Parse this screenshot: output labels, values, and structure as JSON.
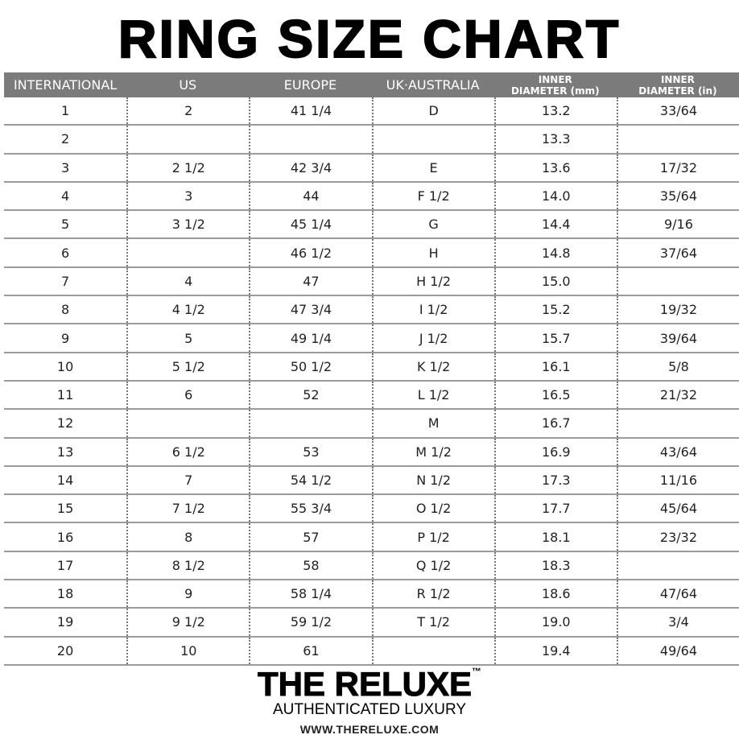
{
  "title": "RING SIZE CHART",
  "headers": [
    "INTERNATIONAL",
    "US",
    "EUROPE",
    "UK·AUSTRALIA",
    [
      "INNER",
      "DIAMETER (mm)"
    ],
    [
      "INNER",
      "DIAMETER (in)"
    ]
  ],
  "rows": [
    [
      "1",
      "2",
      "41 1/4",
      "D",
      "13.2",
      "33/64"
    ],
    [
      "2",
      "",
      "",
      "",
      "13.3",
      ""
    ],
    [
      "3",
      "2 1/2",
      "42 3/4",
      "E",
      "13.6",
      "17/32"
    ],
    [
      "4",
      "3",
      "44",
      "F 1/2",
      "14.0",
      "35/64"
    ],
    [
      "5",
      "3 1/2",
      "45 1/4",
      "G",
      "14.4",
      "9/16"
    ],
    [
      "6",
      "",
      "46 1/2",
      "H",
      "14.8",
      "37/64"
    ],
    [
      "7",
      "4",
      "47",
      "H 1/2",
      "15.0",
      ""
    ],
    [
      "8",
      "4 1/2",
      "47 3/4",
      "I 1/2",
      "15.2",
      "19/32"
    ],
    [
      "9",
      "5",
      "49 1/4",
      "J 1/2",
      "15.7",
      "39/64"
    ],
    [
      "10",
      "5 1/2",
      "50 1/2",
      "K 1/2",
      "16.1",
      "5/8"
    ],
    [
      "11",
      "6",
      "52",
      "L 1/2",
      "16.5",
      "21/32"
    ],
    [
      "12",
      "",
      "",
      "M",
      "16.7",
      ""
    ],
    [
      "13",
      "6 1/2",
      "53",
      "M 1/2",
      "16.9",
      "43/64"
    ],
    [
      "14",
      "7",
      "54 1/2",
      "N 1/2",
      "17.3",
      "11/16"
    ],
    [
      "15",
      "7 1/2",
      "55 3/4",
      "O 1/2",
      "17.7",
      "45/64"
    ],
    [
      "16",
      "8",
      "57",
      "P 1/2",
      "18.1",
      "23/32"
    ],
    [
      "17",
      "8 1/2",
      "58",
      "Q 1/2",
      "18.3",
      ""
    ],
    [
      "18",
      "9",
      "58 1/4",
      "R 1/2",
      "18.6",
      "47/64"
    ],
    [
      "19",
      "9 1/2",
      "59 1/2",
      "T 1/2",
      "19.0",
      "3/4"
    ],
    [
      "20",
      "10",
      "61",
      "",
      "19.4",
      "49/64"
    ]
  ],
  "footer": {
    "brand": "THE RELUXE",
    "trademark": "™",
    "tagline": "AUTHENTICATED LUXURY",
    "url": "WWW.THERELUXE.COM"
  },
  "colors": {
    "header_bg": "#7b7b7b",
    "header_text": "#ffffff"
  }
}
